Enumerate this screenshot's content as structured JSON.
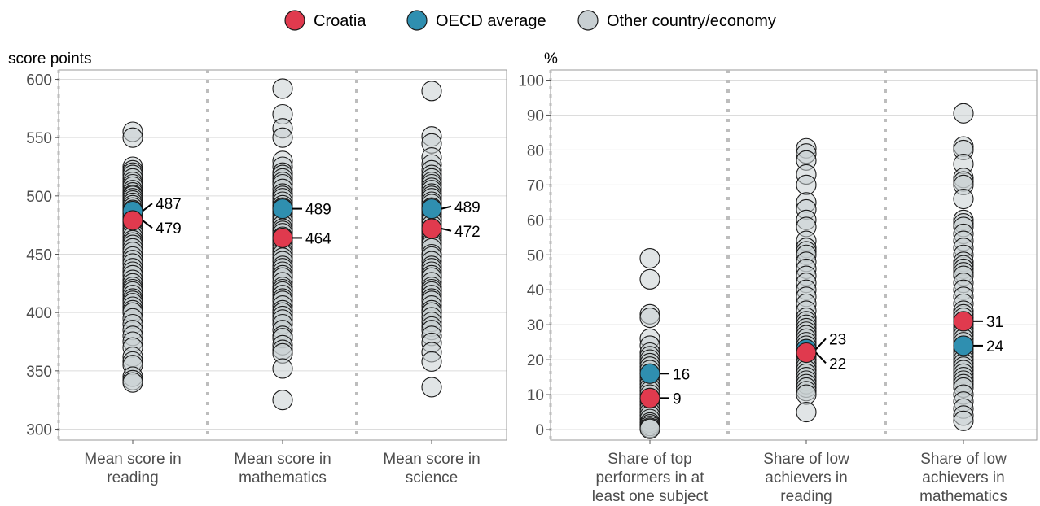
{
  "legend": {
    "position": "top-center",
    "items": [
      {
        "label": "Croatia",
        "color": "#e03a4e"
      },
      {
        "label": "OECD average",
        "color": "#2f8fb0"
      },
      {
        "label": "Other country/economy",
        "color": "#c8cfd2"
      }
    ]
  },
  "chart_data": [
    {
      "type": "scatter",
      "unit_label": "score points",
      "ylim": [
        295,
        605
      ],
      "yticks": [
        300,
        350,
        400,
        450,
        500,
        550,
        600
      ],
      "grid": true,
      "categories": [
        {
          "label_lines": [
            "Mean score in",
            "reading"
          ]
        },
        {
          "label_lines": [
            "Mean score in",
            "mathematics"
          ]
        },
        {
          "label_lines": [
            "Mean score in",
            "science"
          ]
        }
      ],
      "other_values": [
        [
          555,
          550,
          525,
          522,
          520,
          518,
          515,
          512,
          510,
          508,
          505,
          503,
          501,
          500,
          498,
          496,
          494,
          492,
          490,
          488,
          485,
          482,
          480,
          478,
          475,
          472,
          470,
          468,
          465,
          462,
          460,
          458,
          455,
          452,
          448,
          445,
          442,
          438,
          435,
          432,
          428,
          425,
          422,
          420,
          418,
          415,
          412,
          410,
          408,
          405,
          402,
          400,
          395,
          390,
          385,
          380,
          375,
          370,
          362,
          358,
          355,
          345,
          342,
          340
        ],
        [
          592,
          570,
          558,
          550,
          530,
          525,
          520,
          518,
          515,
          512,
          510,
          506,
          502,
          500,
          498,
          495,
          492,
          490,
          487,
          485,
          482,
          480,
          478,
          475,
          472,
          470,
          468,
          465,
          462,
          460,
          458,
          455,
          452,
          450,
          447,
          444,
          440,
          438,
          435,
          432,
          430,
          426,
          422,
          420,
          418,
          415,
          412,
          410,
          406,
          402,
          400,
          397,
          394,
          390,
          385,
          380,
          378,
          372,
          368,
          365,
          352,
          325
        ],
        [
          590,
          551,
          545,
          533,
          527,
          522,
          518,
          515,
          512,
          510,
          507,
          505,
          502,
          500,
          498,
          495,
          493,
          490,
          488,
          486,
          484,
          482,
          480,
          478,
          475,
          472,
          470,
          468,
          465,
          462,
          460,
          458,
          455,
          450,
          448,
          444,
          440,
          438,
          435,
          432,
          430,
          426,
          422,
          420,
          418,
          415,
          412,
          410,
          406,
          402,
          400,
          396,
          392,
          388,
          385,
          380,
          374,
          366,
          358,
          336
        ]
      ],
      "oecd": [
        487,
        489,
        489
      ],
      "croatia": [
        479,
        464,
        472
      ],
      "oecd_labels": [
        "487",
        "489",
        "489"
      ],
      "croatia_labels": [
        "479",
        "464",
        "472"
      ]
    },
    {
      "type": "scatter",
      "unit_label": "%",
      "ylim": [
        -2,
        102
      ],
      "yticks": [
        0,
        10,
        20,
        30,
        40,
        50,
        60,
        70,
        80,
        90,
        100
      ],
      "grid": true,
      "categories": [
        {
          "label_lines": [
            "Share of top",
            "performers in at",
            "least one subject"
          ]
        },
        {
          "label_lines": [
            "Share of low",
            "achievers in",
            "reading"
          ]
        },
        {
          "label_lines": [
            "Share of low",
            "achievers in",
            "mathematics"
          ]
        }
      ],
      "other_values": [
        [
          49,
          43,
          33,
          32,
          26,
          24,
          22,
          21,
          20,
          19,
          18,
          17,
          16,
          15,
          14,
          13,
          12,
          11,
          10,
          9,
          8,
          7,
          6,
          5,
          4,
          3,
          2,
          1.5,
          1,
          0.5,
          0.2
        ],
        [
          80.5,
          79,
          77,
          73,
          70,
          65,
          63,
          60,
          58,
          54,
          52,
          51,
          50,
          48,
          46,
          44,
          42,
          40,
          38,
          36,
          34,
          32,
          31,
          30,
          29,
          28,
          27,
          26,
          25,
          24,
          23,
          22,
          21,
          20,
          19,
          18,
          17,
          16,
          15,
          14,
          13,
          12,
          11,
          10,
          5
        ],
        [
          90.5,
          81,
          80,
          76,
          72,
          71,
          70,
          66,
          60,
          59,
          58,
          56,
          54,
          52,
          50,
          48,
          47,
          46,
          45,
          44,
          42,
          40,
          38,
          36,
          34,
          33,
          32,
          30,
          29,
          28,
          27,
          26,
          25,
          23,
          22,
          21,
          20,
          19,
          18,
          17,
          16,
          15,
          14,
          13,
          12,
          10,
          8,
          6,
          4,
          2.5
        ]
      ],
      "oecd": [
        16,
        23,
        24
      ],
      "croatia": [
        9,
        22,
        31
      ],
      "oecd_labels": [
        "16",
        "23",
        "24"
      ],
      "croatia_labels": [
        "9",
        "22",
        "31"
      ]
    }
  ]
}
